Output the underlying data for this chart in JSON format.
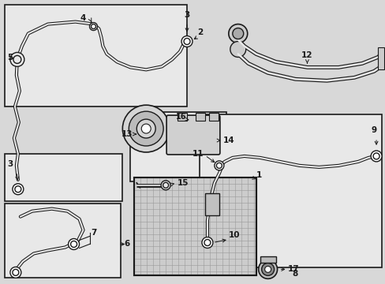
{
  "bg_color": "#d8d8d8",
  "line_color": "#1a1a1a",
  "box_color": "#e8e8e8",
  "white": "#ffffff",
  "grid_color": "#888888",
  "hatch_color": "#aaaaaa"
}
